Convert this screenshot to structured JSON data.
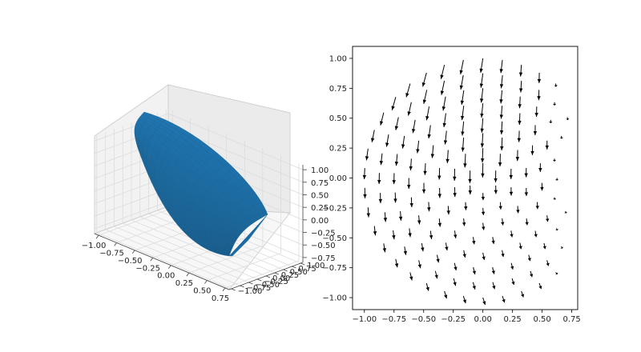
{
  "colors": {
    "surface": "#1f77b4",
    "surface_mesh": "#1a5e8e",
    "pane_left": "#f2f2f2",
    "pane_back": "#ebebeb",
    "pane_floor": "#f7f7f7",
    "arrow": "#000000",
    "axes": "#444444"
  },
  "chart_data": [
    {
      "type": "surface3d",
      "surface_color": "#1f77b4",
      "grid": true,
      "x_ticks": [
        "−1.00",
        "−0.75",
        "−0.50",
        "−0.25",
        "0.00",
        "0.25",
        "0.50",
        "0.75"
      ],
      "y_ticks": [
        "−1.00",
        "−0.75",
        "−0.50",
        "−0.25",
        "0.00",
        "0.25",
        "0.50",
        "0.75",
        "1.00"
      ],
      "z_ticks": [
        "−0.75",
        "−0.50",
        "−0.25",
        "0.00",
        "0.25",
        "0.50",
        "0.75",
        "1.00"
      ],
      "xlim": [
        -1.0,
        0.75
      ],
      "ylim": [
        -1.0,
        1.0
      ],
      "zlim": [
        -0.75,
        1.0
      ]
    },
    {
      "type": "quiver",
      "arrow_color": "#000000",
      "field": "polar grid, vectors pointing mostly downward (negative y), with curl around origin",
      "xlim": [
        -1.1,
        0.8
      ],
      "ylim": [
        -1.1,
        1.1
      ],
      "x_ticks": [
        "−1.00",
        "−0.75",
        "−0.50",
        "−0.25",
        "0.00",
        "0.25",
        "0.50",
        "0.75"
      ],
      "y_ticks": [
        "1.00",
        "0.75",
        "0.50",
        "0.25",
        "0.00",
        "−0.25",
        "−0.50",
        "−0.75",
        "−1.00"
      ],
      "x_tick_values": [
        -1.0,
        -0.75,
        -0.5,
        -0.25,
        0.0,
        0.25,
        0.5,
        0.75
      ],
      "y_tick_values": [
        1.0,
        0.75,
        0.5,
        0.25,
        0.0,
        -0.25,
        -0.5,
        -0.75,
        -1.0
      ]
    }
  ]
}
